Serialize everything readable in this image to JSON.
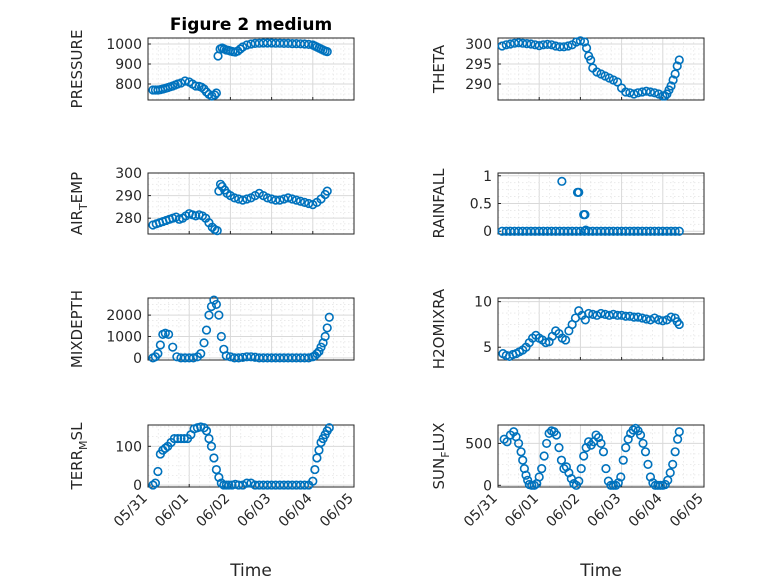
{
  "figure": {
    "title": "Figure 2 medium",
    "marker_color": "#0072BD"
  },
  "chart_data": [
    {
      "type": "scatter",
      "ylabel": "PRESSURE",
      "ylim": [
        720,
        1030
      ],
      "yticks": [
        "800",
        "900",
        "1000"
      ],
      "xlabel": "",
      "xlim": [
        0,
        5
      ],
      "grid": "major+minor",
      "series": [
        {
          "x": [
            0.12,
            0.18,
            0.24,
            0.3,
            0.36,
            0.42,
            0.48,
            0.54,
            0.6,
            0.66,
            0.72,
            0.8,
            0.9,
            1.0,
            1.08,
            1.16,
            1.24,
            1.3,
            1.36,
            1.42,
            1.48,
            1.55,
            1.62,
            1.66,
            1.7,
            1.75,
            1.8,
            1.85,
            1.9,
            1.95,
            2.0,
            2.06,
            2.12,
            2.18,
            2.24,
            2.3,
            2.4,
            2.5,
            2.6,
            2.7,
            2.8,
            2.9,
            3.0,
            3.1,
            3.2,
            3.3,
            3.4,
            3.5,
            3.6,
            3.7,
            3.8,
            3.9,
            4.0,
            4.05,
            4.1,
            4.15,
            4.2,
            4.25,
            4.3,
            4.35
          ],
          "y": [
            770,
            770,
            770,
            772,
            775,
            778,
            782,
            786,
            790,
            795,
            800,
            805,
            815,
            810,
            800,
            790,
            788,
            784,
            775,
            760,
            748,
            740,
            745,
            755,
            940,
            975,
            980,
            975,
            970,
            968,
            965,
            962,
            960,
            965,
            975,
            985,
            995,
            1000,
            1003,
            1004,
            1005,
            1005,
            1005,
            1004,
            1004,
            1003,
            1003,
            1002,
            1002,
            1001,
            1000,
            998,
            995,
            990,
            985,
            980,
            975,
            970,
            965,
            962
          ]
        }
      ]
    },
    {
      "type": "scatter",
      "ylabel": "THETA",
      "ylim": [
        286,
        301.5
      ],
      "yticks": [
        "290",
        "295",
        "300"
      ],
      "xlabel": "",
      "xlim": [
        0,
        5
      ],
      "grid": "major+minor",
      "series": [
        {
          "x": [
            0.1,
            0.2,
            0.3,
            0.4,
            0.5,
            0.6,
            0.7,
            0.8,
            0.9,
            1.0,
            1.1,
            1.2,
            1.3,
            1.4,
            1.5,
            1.6,
            1.7,
            1.8,
            1.9,
            2.0,
            2.1,
            2.15,
            2.2,
            2.25,
            2.3,
            2.4,
            2.5,
            2.6,
            2.7,
            2.8,
            2.9,
            3.0,
            3.1,
            3.2,
            3.3,
            3.4,
            3.5,
            3.6,
            3.7,
            3.8,
            3.9,
            4.0,
            4.05,
            4.1,
            4.15,
            4.2,
            4.25,
            4.3,
            4.35,
            4.4
          ],
          "y": [
            299.5,
            299.8,
            300,
            300.2,
            300.3,
            300.2,
            300.1,
            300,
            299.8,
            299.6,
            299.8,
            299.9,
            299.8,
            299.5,
            299.3,
            299.3,
            299.5,
            299.8,
            300.5,
            300.8,
            300.5,
            299,
            297,
            296,
            294,
            293,
            292.5,
            292,
            291.5,
            291,
            290.5,
            289,
            288,
            287.8,
            287.5,
            287.8,
            288,
            288.2,
            288,
            287.8,
            287.5,
            287,
            287,
            287.5,
            288.5,
            289.5,
            291,
            292.5,
            294.5,
            296
          ]
        }
      ]
    },
    {
      "type": "scatter",
      "ylabel": "AIR",
      "ylabel_sub": "T",
      "ylabel_rest": "EMP",
      "ylim": [
        273,
        300
      ],
      "yticks": [
        "280",
        "290",
        "300"
      ],
      "xlabel": "",
      "xlim": [
        0,
        5
      ],
      "grid": "major+minor",
      "series": [
        {
          "x": [
            0.12,
            0.2,
            0.28,
            0.36,
            0.44,
            0.52,
            0.6,
            0.68,
            0.76,
            0.84,
            0.92,
            1.0,
            1.08,
            1.16,
            1.24,
            1.32,
            1.4,
            1.48,
            1.56,
            1.62,
            1.68,
            1.72,
            1.76,
            1.8,
            1.86,
            1.92,
            2.0,
            2.1,
            2.2,
            2.3,
            2.4,
            2.5,
            2.6,
            2.7,
            2.8,
            2.9,
            3.0,
            3.1,
            3.2,
            3.3,
            3.4,
            3.5,
            3.6,
            3.7,
            3.8,
            3.9,
            4.0,
            4.1,
            4.2,
            4.3,
            4.35
          ],
          "y": [
            277,
            277.5,
            278,
            278.5,
            279,
            279.5,
            280,
            280.5,
            279.5,
            280,
            281,
            282,
            281.5,
            281,
            281.5,
            281,
            280,
            278,
            276,
            275,
            274.5,
            292,
            295,
            294,
            292.5,
            291,
            290,
            289,
            288.5,
            288,
            288.5,
            289,
            290,
            291,
            290,
            289,
            288.5,
            288,
            288,
            288.5,
            289,
            288.5,
            288,
            287.5,
            287,
            286.5,
            286,
            287,
            288.5,
            290.5,
            292
          ]
        }
      ]
    },
    {
      "type": "scatter",
      "ylabel": "RAINFALL",
      "ylim": [
        -0.05,
        1.05
      ],
      "yticks": [
        "0",
        "0.5",
        "1"
      ],
      "xlabel": "",
      "xlim": [
        0,
        5
      ],
      "grid": "major+minor",
      "series": [
        {
          "x": [
            0.1,
            0.2,
            0.3,
            0.4,
            0.5,
            0.6,
            0.7,
            0.8,
            0.9,
            1.0,
            1.1,
            1.2,
            1.3,
            1.4,
            1.5,
            1.6,
            1.7,
            1.8,
            1.9,
            2.0,
            2.1,
            2.2,
            2.3,
            2.4,
            2.5,
            2.6,
            2.7,
            2.8,
            2.9,
            3.0,
            3.1,
            3.2,
            3.3,
            3.4,
            3.5,
            3.6,
            3.7,
            3.8,
            3.9,
            4.0,
            4.1,
            4.2,
            4.3,
            4.4,
            1.55,
            1.93,
            1.96,
            2.08,
            2.11,
            2.13
          ],
          "y": [
            0,
            0,
            0,
            0,
            0,
            0,
            0,
            0,
            0,
            0,
            0,
            0,
            0,
            0,
            0,
            0,
            0,
            0,
            0,
            0,
            0,
            0,
            0,
            0,
            0,
            0,
            0,
            0,
            0,
            0,
            0,
            0,
            0,
            0,
            0,
            0,
            0,
            0,
            0,
            0,
            0,
            0,
            0,
            0,
            0.9,
            0.7,
            0.7,
            0.3,
            0.3,
            0.02
          ]
        }
      ]
    },
    {
      "type": "scatter",
      "ylabel": "MIXDEPTH",
      "ylim": [
        -100,
        2800
      ],
      "yticks": [
        "0",
        "1000",
        "2000"
      ],
      "xlabel": "",
      "xlim": [
        0,
        5
      ],
      "grid": "major+minor",
      "series": [
        {
          "x": [
            0.12,
            0.18,
            0.24,
            0.3,
            0.36,
            0.42,
            0.5,
            0.6,
            0.7,
            0.8,
            0.9,
            1.0,
            1.1,
            1.2,
            1.28,
            1.36,
            1.42,
            1.48,
            1.54,
            1.6,
            1.66,
            1.72,
            1.78,
            1.84,
            1.9,
            2.0,
            2.1,
            2.2,
            2.3,
            2.4,
            2.5,
            2.6,
            2.7,
            2.8,
            2.9,
            3.0,
            3.1,
            3.2,
            3.3,
            3.4,
            3.5,
            3.6,
            3.7,
            3.8,
            3.9,
            4.0,
            4.05,
            4.1,
            4.15,
            4.2,
            4.25,
            4.3,
            4.35,
            4.4
          ],
          "y": [
            0,
            50,
            200,
            600,
            1100,
            1150,
            1100,
            500,
            50,
            0,
            0,
            0,
            0,
            50,
            200,
            700,
            1300,
            2000,
            2400,
            2700,
            2500,
            2000,
            1000,
            400,
            100,
            50,
            0,
            0,
            20,
            50,
            50,
            30,
            0,
            0,
            0,
            0,
            0,
            0,
            0,
            0,
            0,
            0,
            0,
            0,
            0,
            50,
            100,
            200,
            300,
            500,
            700,
            1000,
            1400,
            1900
          ]
        }
      ]
    },
    {
      "type": "scatter",
      "ylabel": "H2OMIXRA",
      "ylim": [
        3.6,
        10.4
      ],
      "yticks": [
        "5",
        "10"
      ],
      "xlabel": "",
      "xlim": [
        0,
        5
      ],
      "grid": "major+minor",
      "series": [
        {
          "x": [
            0.12,
            0.2,
            0.28,
            0.36,
            0.44,
            0.52,
            0.6,
            0.68,
            0.76,
            0.84,
            0.92,
            1.0,
            1.08,
            1.16,
            1.24,
            1.32,
            1.4,
            1.48,
            1.56,
            1.64,
            1.72,
            1.8,
            1.88,
            1.96,
            2.04,
            2.12,
            2.2,
            2.3,
            2.4,
            2.5,
            2.6,
            2.7,
            2.8,
            2.9,
            3.0,
            3.1,
            3.2,
            3.3,
            3.4,
            3.5,
            3.6,
            3.7,
            3.8,
            3.9,
            4.0,
            4.1,
            4.2,
            4.3,
            4.35,
            4.4
          ],
          "y": [
            4.3,
            4.1,
            4.0,
            4.2,
            4.3,
            4.5,
            4.7,
            5.0,
            5.5,
            6.0,
            6.3,
            6.0,
            5.8,
            5.5,
            5.6,
            6.2,
            6.8,
            6.5,
            6.0,
            5.8,
            6.8,
            7.5,
            8.2,
            9.0,
            8.5,
            8.0,
            8.7,
            8.6,
            8.5,
            8.7,
            8.6,
            8.5,
            8.6,
            8.5,
            8.5,
            8.4,
            8.4,
            8.3,
            8.3,
            8.2,
            8.1,
            8.0,
            8.2,
            8.0,
            7.9,
            8.0,
            8.3,
            8.2,
            7.8,
            7.5
          ]
        }
      ]
    },
    {
      "type": "scatter",
      "ylabel": "TERR",
      "ylabel_sub": "M",
      "ylabel_rest": "SL",
      "ylim": [
        -5,
        155
      ],
      "yticks": [
        "0",
        "100"
      ],
      "xlabel": "Time",
      "xlim": [
        0,
        5
      ],
      "xticks": [
        "05/31",
        "06/01",
        "06/02",
        "06/03",
        "06/04",
        "06/05"
      ],
      "grid": "major+minor",
      "series": [
        {
          "x": [
            0.12,
            0.18,
            0.24,
            0.3,
            0.36,
            0.42,
            0.48,
            0.56,
            0.64,
            0.72,
            0.8,
            0.88,
            0.96,
            1.04,
            1.12,
            1.2,
            1.28,
            1.36,
            1.42,
            1.48,
            1.54,
            1.6,
            1.66,
            1.72,
            1.78,
            1.84,
            1.9,
            1.96,
            2.04,
            2.12,
            2.2,
            2.3,
            2.4,
            2.5,
            2.6,
            2.7,
            2.8,
            2.9,
            3.0,
            3.1,
            3.2,
            3.3,
            3.4,
            3.5,
            3.6,
            3.7,
            3.8,
            3.9,
            4.0,
            4.05,
            4.1,
            4.15,
            4.2,
            4.25,
            4.3,
            4.35,
            4.4
          ],
          "y": [
            0,
            5,
            35,
            80,
            90,
            95,
            100,
            110,
            120,
            120,
            120,
            120,
            120,
            130,
            145,
            148,
            150,
            148,
            140,
            120,
            100,
            70,
            40,
            20,
            5,
            0,
            0,
            0,
            0,
            2,
            0,
            0,
            5,
            5,
            0,
            0,
            0,
            0,
            0,
            0,
            0,
            0,
            0,
            0,
            0,
            0,
            0,
            0,
            10,
            40,
            70,
            90,
            110,
            120,
            130,
            140,
            148
          ]
        }
      ]
    },
    {
      "type": "scatter",
      "ylabel": "SUN",
      "ylabel_sub": "F",
      "ylabel_rest": "LUX",
      "ylim": [
        -20,
        720
      ],
      "yticks": [
        "0",
        "500"
      ],
      "xlabel": "Time",
      "xlim": [
        0,
        5
      ],
      "xticks": [
        "05/31",
        "06/01",
        "06/02",
        "06/03",
        "06/04",
        "06/05"
      ],
      "grid": "major+minor",
      "series": [
        {
          "x": [
            0.15,
            0.22,
            0.3,
            0.38,
            0.44,
            0.5,
            0.56,
            0.6,
            0.64,
            0.68,
            0.72,
            0.76,
            0.82,
            0.88,
            0.94,
            1.0,
            1.06,
            1.12,
            1.18,
            1.24,
            1.3,
            1.36,
            1.42,
            1.48,
            1.54,
            1.6,
            1.66,
            1.72,
            1.78,
            1.84,
            1.9,
            1.96,
            2.02,
            2.08,
            2.14,
            2.2,
            2.26,
            2.32,
            2.38,
            2.44,
            2.5,
            2.56,
            2.62,
            2.68,
            2.74,
            2.8,
            2.86,
            2.92,
            2.98,
            3.04,
            3.1,
            3.16,
            3.22,
            3.28,
            3.34,
            3.4,
            3.46,
            3.52,
            3.58,
            3.64,
            3.7,
            3.76,
            3.82,
            3.88,
            3.94,
            4.0,
            4.06,
            4.12,
            4.18,
            4.24,
            4.3,
            4.36,
            4.4
          ],
          "y": [
            550,
            520,
            600,
            640,
            580,
            500,
            400,
            300,
            200,
            120,
            60,
            10,
            0,
            0,
            20,
            100,
            200,
            350,
            500,
            620,
            650,
            640,
            600,
            450,
            300,
            200,
            220,
            150,
            80,
            20,
            0,
            50,
            200,
            350,
            450,
            520,
            480,
            520,
            600,
            570,
            500,
            400,
            200,
            50,
            0,
            0,
            0,
            30,
            100,
            300,
            450,
            550,
            620,
            660,
            680,
            650,
            600,
            500,
            400,
            250,
            100,
            30,
            0,
            0,
            0,
            0,
            10,
            60,
            150,
            250,
            400,
            550,
            640
          ]
        }
      ]
    }
  ]
}
